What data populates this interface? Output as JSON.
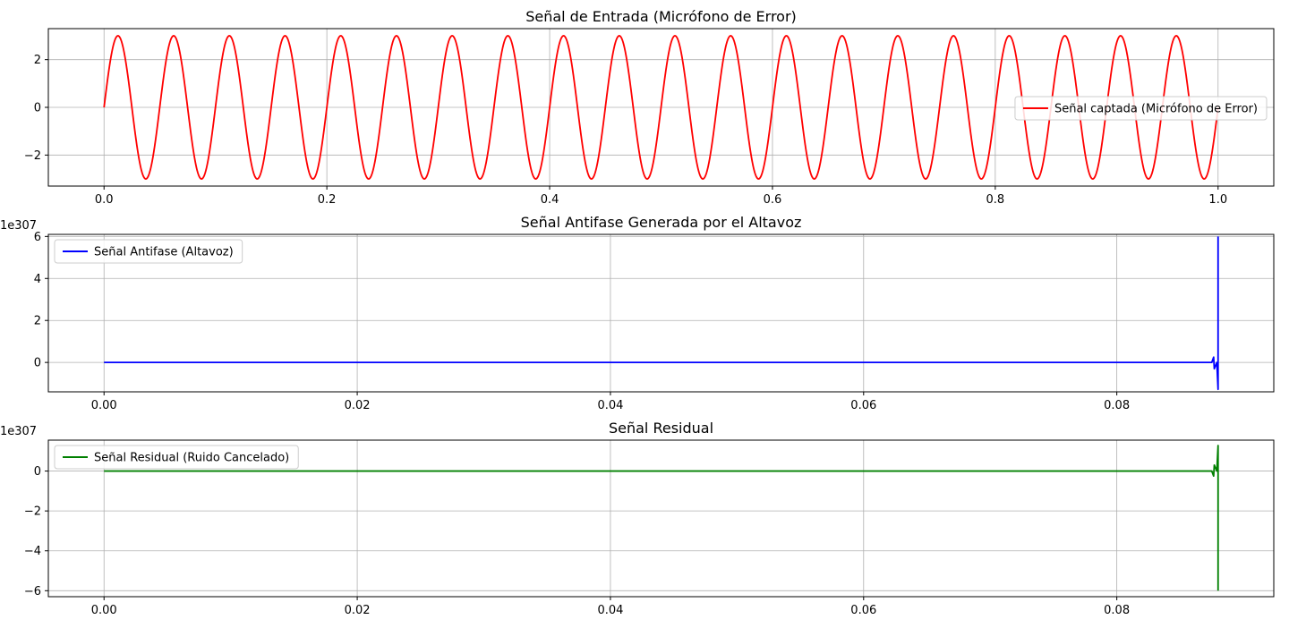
{
  "chart_data": [
    {
      "type": "line",
      "title": "Señal de Entrada (Micrófono de Error)",
      "xlabel": "",
      "ylabel": "",
      "y_offset_label": "",
      "xlim": [
        -0.05,
        1.05
      ],
      "ylim": [
        -3.3,
        3.3
      ],
      "xticks": [
        0.0,
        0.2,
        0.4,
        0.6,
        0.8,
        1.0
      ],
      "xtick_labels": [
        "0.0",
        "0.2",
        "0.4",
        "0.6",
        "0.8",
        "1.0"
      ],
      "yticks": [
        -2,
        0,
        2
      ],
      "ytick_labels": [
        "−2",
        "0",
        "2"
      ],
      "grid": true,
      "legend_position": "center-right",
      "series": [
        {
          "name": "Señal captada (Micrófono de Error)",
          "color": "#ff0000",
          "signal": {
            "kind": "sine",
            "amplitude": 3,
            "frequency_hz": 20,
            "x_start": 0,
            "x_end": 1
          }
        }
      ]
    },
    {
      "type": "line",
      "title": "Señal Antifase Generada por el Altavoz",
      "xlabel": "",
      "ylabel": "",
      "y_offset_label": "1e307",
      "xlim": [
        -0.0044,
        0.0924
      ],
      "ylim": [
        -1.4,
        6.1
      ],
      "xticks": [
        0.0,
        0.02,
        0.04,
        0.06,
        0.08
      ],
      "xtick_labels": [
        "0.00",
        "0.02",
        "0.04",
        "0.06",
        "0.08"
      ],
      "yticks": [
        0,
        2,
        4,
        6
      ],
      "ytick_labels": [
        "0",
        "2",
        "4",
        "6"
      ],
      "grid": true,
      "legend_position": "upper-left",
      "series": [
        {
          "name": "Señal Antifase (Altavoz)",
          "color": "#0000ff",
          "points": [
            [
              0,
              0
            ],
            [
              0.0875,
              0
            ],
            [
              0.08765,
              0.25
            ],
            [
              0.0877,
              -0.3
            ],
            [
              0.0879,
              0
            ],
            [
              0.088,
              -1.28
            ],
            [
              0.088,
              6.0
            ]
          ]
        }
      ]
    },
    {
      "type": "line",
      "title": "Señal Residual",
      "xlabel": "",
      "ylabel": "",
      "y_offset_label": "1e307",
      "xlim": [
        -0.0044,
        0.0924
      ],
      "ylim": [
        -6.3,
        1.55
      ],
      "xticks": [
        0.0,
        0.02,
        0.04,
        0.06,
        0.08
      ],
      "xtick_labels": [
        "0.00",
        "0.02",
        "0.04",
        "0.06",
        "0.08"
      ],
      "yticks": [
        -6,
        -4,
        -2,
        0
      ],
      "ytick_labels": [
        "−6",
        "−4",
        "−2",
        "0"
      ],
      "grid": true,
      "legend_position": "upper-left",
      "series": [
        {
          "name": "Señal Residual (Ruido Cancelado)",
          "color": "#008000",
          "points": [
            [
              0,
              0
            ],
            [
              0.0875,
              0
            ],
            [
              0.08765,
              -0.25
            ],
            [
              0.0877,
              0.3
            ],
            [
              0.0879,
              0
            ],
            [
              0.088,
              1.28
            ],
            [
              0.088,
              -6.0
            ]
          ]
        }
      ]
    }
  ]
}
